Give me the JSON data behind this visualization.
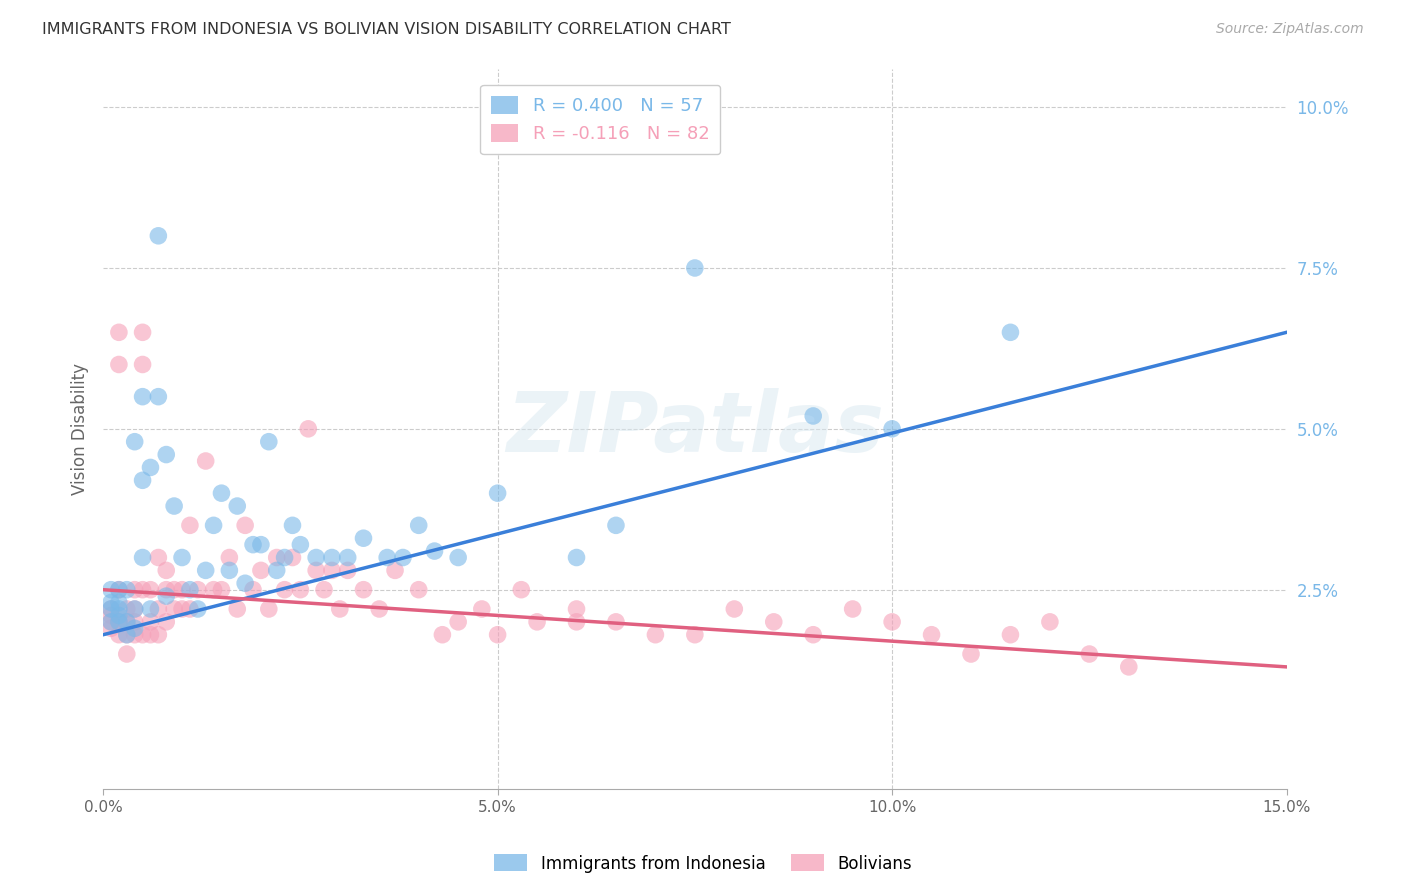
{
  "title": "IMMIGRANTS FROM INDONESIA VS BOLIVIAN VISION DISABILITY CORRELATION CHART",
  "source": "Source: ZipAtlas.com",
  "ylabel": "Vision Disability",
  "x_min": 0.0,
  "x_max": 0.15,
  "y_min": -0.006,
  "y_max": 0.106,
  "x_ticks": [
    0.0,
    0.05,
    0.1,
    0.15
  ],
  "x_tick_labels": [
    "0.0%",
    "5.0%",
    "10.0%",
    "15.0%"
  ],
  "y_ticks_right": [
    0.025,
    0.05,
    0.075,
    0.1
  ],
  "y_tick_labels_right": [
    "2.5%",
    "5.0%",
    "7.5%",
    "10.0%"
  ],
  "legend_label1": "R = 0.400   N = 57",
  "legend_label2": "R = -0.116   N = 82",
  "legend_color1": "#7ab8e8",
  "legend_color2": "#f5a0b8",
  "series1_color": "#7ab8e8",
  "series2_color": "#f5a0b8",
  "line1_color": "#3a7fd9",
  "line2_color": "#e06080",
  "watermark": "ZIPatlas",
  "trend1_x0": 0.0,
  "trend1_y0": 0.018,
  "trend1_x1": 0.15,
  "trend1_y1": 0.065,
  "trend2_x0": 0.0,
  "trend2_y0": 0.025,
  "trend2_x1": 0.15,
  "trend2_y1": 0.013,
  "indonesian_x": [
    0.001,
    0.001,
    0.001,
    0.001,
    0.002,
    0.002,
    0.002,
    0.002,
    0.002,
    0.003,
    0.003,
    0.003,
    0.004,
    0.004,
    0.004,
    0.005,
    0.005,
    0.005,
    0.006,
    0.006,
    0.007,
    0.007,
    0.008,
    0.008,
    0.009,
    0.01,
    0.011,
    0.012,
    0.013,
    0.014,
    0.015,
    0.016,
    0.017,
    0.018,
    0.019,
    0.02,
    0.021,
    0.022,
    0.023,
    0.024,
    0.025,
    0.027,
    0.029,
    0.031,
    0.033,
    0.036,
    0.038,
    0.04,
    0.042,
    0.045,
    0.05,
    0.06,
    0.065,
    0.075,
    0.09,
    0.1,
    0.115
  ],
  "indonesian_y": [
    0.02,
    0.023,
    0.025,
    0.022,
    0.02,
    0.021,
    0.022,
    0.023,
    0.025,
    0.02,
    0.018,
    0.025,
    0.048,
    0.022,
    0.019,
    0.03,
    0.042,
    0.055,
    0.022,
    0.044,
    0.055,
    0.08,
    0.024,
    0.046,
    0.038,
    0.03,
    0.025,
    0.022,
    0.028,
    0.035,
    0.04,
    0.028,
    0.038,
    0.026,
    0.032,
    0.032,
    0.048,
    0.028,
    0.03,
    0.035,
    0.032,
    0.03,
    0.03,
    0.03,
    0.033,
    0.03,
    0.03,
    0.035,
    0.031,
    0.03,
    0.04,
    0.03,
    0.035,
    0.075,
    0.052,
    0.05,
    0.065
  ],
  "bolivian_x": [
    0.001,
    0.001,
    0.001,
    0.001,
    0.002,
    0.002,
    0.002,
    0.002,
    0.002,
    0.003,
    0.003,
    0.003,
    0.003,
    0.004,
    0.004,
    0.004,
    0.004,
    0.005,
    0.005,
    0.005,
    0.005,
    0.006,
    0.006,
    0.006,
    0.007,
    0.007,
    0.007,
    0.008,
    0.008,
    0.008,
    0.009,
    0.009,
    0.01,
    0.01,
    0.011,
    0.011,
    0.012,
    0.013,
    0.014,
    0.015,
    0.016,
    0.017,
    0.018,
    0.019,
    0.02,
    0.021,
    0.022,
    0.023,
    0.024,
    0.025,
    0.026,
    0.027,
    0.028,
    0.029,
    0.03,
    0.031,
    0.033,
    0.035,
    0.037,
    0.04,
    0.043,
    0.045,
    0.048,
    0.05,
    0.053,
    0.055,
    0.06,
    0.06,
    0.065,
    0.07,
    0.075,
    0.08,
    0.085,
    0.09,
    0.095,
    0.1,
    0.105,
    0.11,
    0.115,
    0.12,
    0.125,
    0.13
  ],
  "bolivian_y": [
    0.022,
    0.021,
    0.02,
    0.019,
    0.065,
    0.06,
    0.025,
    0.02,
    0.018,
    0.02,
    0.022,
    0.018,
    0.015,
    0.025,
    0.022,
    0.02,
    0.018,
    0.065,
    0.06,
    0.025,
    0.018,
    0.025,
    0.02,
    0.018,
    0.03,
    0.022,
    0.018,
    0.028,
    0.025,
    0.02,
    0.025,
    0.022,
    0.025,
    0.022,
    0.035,
    0.022,
    0.025,
    0.045,
    0.025,
    0.025,
    0.03,
    0.022,
    0.035,
    0.025,
    0.028,
    0.022,
    0.03,
    0.025,
    0.03,
    0.025,
    0.05,
    0.028,
    0.025,
    0.028,
    0.022,
    0.028,
    0.025,
    0.022,
    0.028,
    0.025,
    0.018,
    0.02,
    0.022,
    0.018,
    0.025,
    0.02,
    0.022,
    0.02,
    0.02,
    0.018,
    0.018,
    0.022,
    0.02,
    0.018,
    0.022,
    0.02,
    0.018,
    0.015,
    0.018,
    0.02,
    0.015,
    0.013
  ]
}
